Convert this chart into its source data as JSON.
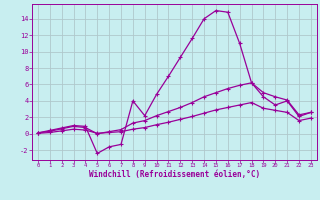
{
  "xlabel": "Windchill (Refroidissement éolien,°C)",
  "bg_color": "#c8eef0",
  "line_color": "#990099",
  "grid_color": "#b0c8cc",
  "xlim": [
    -0.5,
    23.5
  ],
  "ylim": [
    -3.2,
    15.8
  ],
  "xticks": [
    0,
    1,
    2,
    3,
    4,
    5,
    6,
    7,
    8,
    9,
    10,
    11,
    12,
    13,
    14,
    15,
    16,
    17,
    18,
    19,
    20,
    21,
    22,
    23
  ],
  "yticks": [
    -2,
    0,
    2,
    4,
    6,
    8,
    10,
    12,
    14
  ],
  "series1_x": [
    0,
    1,
    2,
    3,
    4,
    5,
    6,
    7,
    8,
    9,
    10,
    11,
    12,
    13,
    14,
    15,
    16,
    17,
    18,
    19,
    20,
    21,
    22,
    23
  ],
  "series1_y": [
    0.1,
    0.4,
    0.7,
    1.0,
    0.9,
    -2.4,
    -1.6,
    -1.3,
    4.0,
    2.2,
    4.8,
    7.0,
    9.3,
    11.6,
    14.0,
    15.0,
    14.8,
    11.0,
    6.2,
    4.5,
    3.5,
    4.0,
    2.1,
    2.6
  ],
  "series2_x": [
    0,
    1,
    2,
    3,
    4,
    5,
    6,
    7,
    8,
    9,
    10,
    11,
    12,
    13,
    14,
    15,
    16,
    17,
    18,
    19,
    20,
    21,
    22,
    23
  ],
  "series2_y": [
    0.1,
    0.3,
    0.6,
    0.9,
    0.75,
    0.0,
    0.25,
    0.5,
    1.3,
    1.6,
    2.2,
    2.7,
    3.2,
    3.8,
    4.5,
    5.0,
    5.5,
    5.9,
    6.2,
    5.0,
    4.5,
    4.1,
    2.3,
    2.6
  ],
  "series3_x": [
    0,
    1,
    2,
    3,
    4,
    5,
    6,
    7,
    8,
    9,
    10,
    11,
    12,
    13,
    14,
    15,
    16,
    17,
    18,
    19,
    20,
    21,
    22,
    23
  ],
  "series3_y": [
    0.05,
    0.15,
    0.35,
    0.55,
    0.45,
    0.05,
    0.15,
    0.25,
    0.55,
    0.75,
    1.1,
    1.4,
    1.75,
    2.1,
    2.5,
    2.9,
    3.2,
    3.5,
    3.8,
    3.1,
    2.85,
    2.6,
    1.6,
    1.9
  ]
}
